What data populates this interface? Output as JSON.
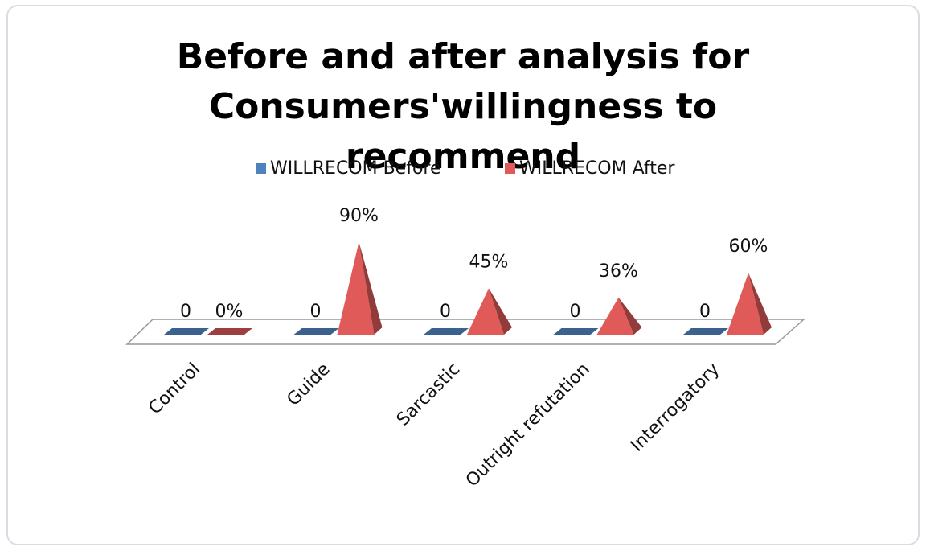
{
  "chart_data": {
    "type": "pyramid3d",
    "title": "Before and after analysis for Consumers'willingness to recommend",
    "categories": [
      "Control",
      "Guide",
      "Sarcastic",
      "Outright refutation",
      "Interrogatory"
    ],
    "series": [
      {
        "name": "WILLRECOM Before",
        "color": "#4f81bd",
        "values": [
          0,
          0,
          0,
          0,
          0
        ]
      },
      {
        "name": "WILLRECOM After",
        "color": "#e05a5a",
        "values": [
          0,
          90,
          45,
          36,
          60
        ],
        "value_labels": [
          "0%",
          "90%",
          "45%",
          "36%",
          "60%"
        ]
      }
    ],
    "legend": "top"
  }
}
